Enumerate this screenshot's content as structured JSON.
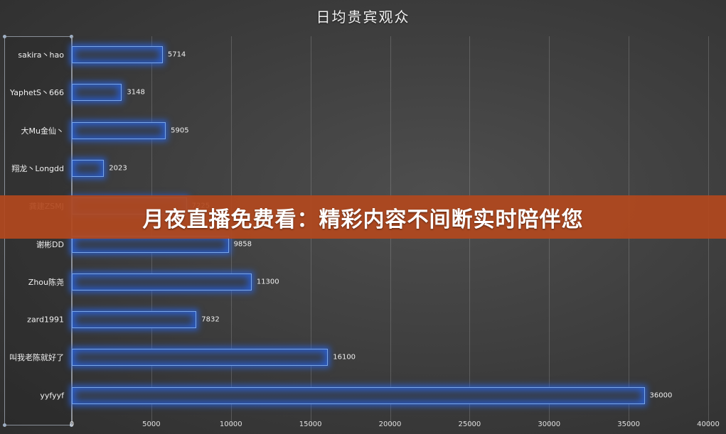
{
  "chart_data": {
    "type": "bar",
    "orientation": "horizontal",
    "title": "日均贵宾观众",
    "xlabel": "",
    "ylabel": "",
    "xlim": [
      0,
      40000
    ],
    "x_ticks": [
      "0",
      "5000",
      "10000",
      "15000",
      "20000",
      "25000",
      "30000",
      "35000",
      "40000"
    ],
    "grid": true,
    "legend": null,
    "categories": [
      "sakira丶hao",
      "YaphetS丶666",
      "大Mu金仙丶",
      "翔龙丶Longdd",
      "龚建ZSMJ",
      "谢彬DD",
      "Zhou陈尧",
      "zard1991",
      "叫我老陈就好了",
      "yyfyyf"
    ],
    "values": [
      5714,
      3148,
      5905,
      2023,
      7225,
      9858,
      11300,
      7832,
      16100,
      36000
    ],
    "value_labels": [
      "5714",
      "3148",
      "5905",
      "2023",
      "7225",
      "9858",
      "11300",
      "7832",
      "16100",
      "36000"
    ],
    "bar_color": "#2f6fe0",
    "bar_border_color": "#7aa6e8"
  },
  "overlay": {
    "banner_text": "月夜直播免费看：精彩内容不间断实时陪伴您",
    "banner_color": "#b2481e"
  }
}
